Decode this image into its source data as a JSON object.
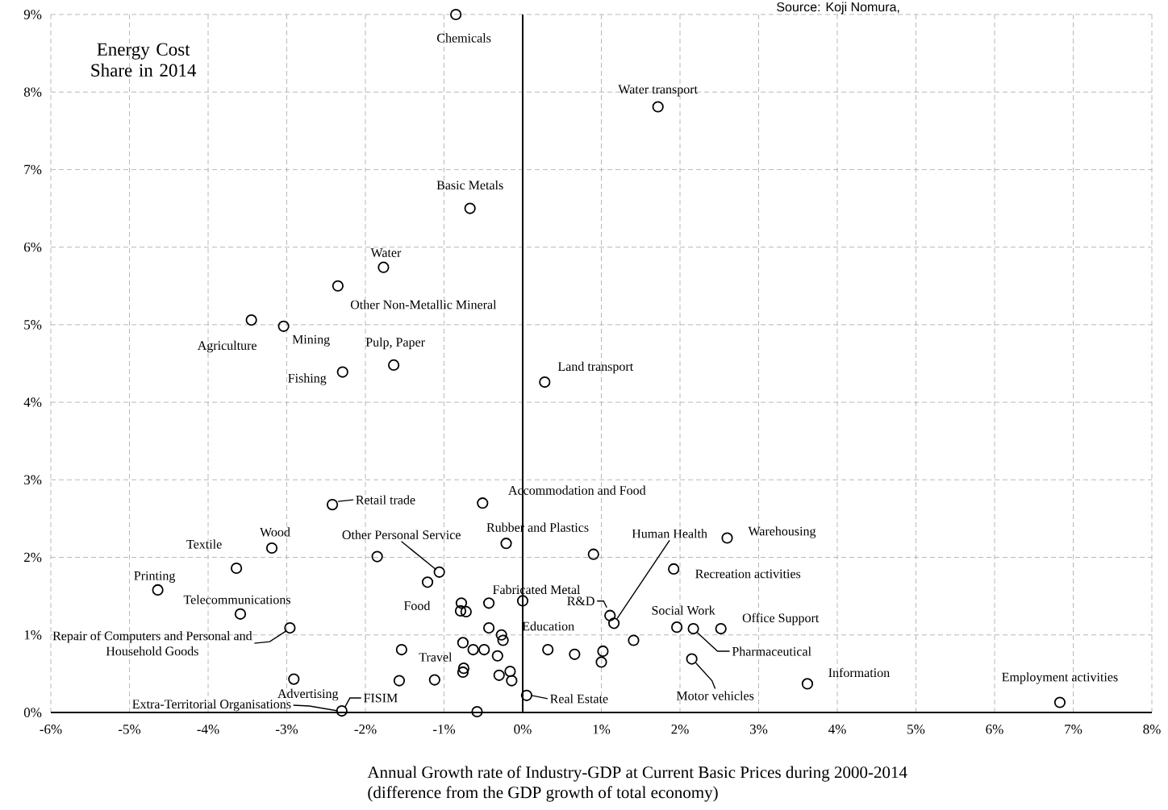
{
  "chart_data": {
    "type": "scatter",
    "ylabel": "Energy Cost Share in 2014",
    "xlabel": "Annual Growth rate of Industry-GDP at Current Basic Prices during 2000-2014",
    "x": [
      -0.85,
      1.72,
      -0.67,
      -1.77,
      -2.35,
      -3.45,
      -3.04,
      -1.64,
      -2.29,
      0.28,
      -2.42,
      -0.51,
      -0.21,
      2.6,
      0.9,
      -3.19,
      -3.64,
      -4.64,
      -1.85,
      -1.06,
      -1.21,
      -3.59,
      -2.96,
      -0.78,
      -0.79,
      -0.72,
      -0.43,
      0.0,
      -0.43,
      -0.27,
      -0.25,
      -0.76,
      -0.63,
      -0.49,
      -0.32,
      -0.75,
      -0.76,
      -0.3,
      -0.16,
      -0.14,
      -1.54,
      -1.57,
      -1.12,
      -2.91,
      -2.3,
      -0.58,
      0.05,
      0.32,
      0.66,
      1.02,
      1.0,
      1.11,
      1.16,
      1.41,
      1.92,
      1.96,
      2.17,
      2.52,
      2.15,
      3.62,
      6.83
    ],
    "values": [
      9.0,
      7.81,
      6.5,
      5.74,
      5.5,
      5.06,
      4.98,
      4.48,
      4.39,
      4.26,
      2.68,
      2.7,
      2.18,
      2.25,
      2.04,
      2.12,
      1.86,
      1.58,
      2.01,
      1.81,
      1.68,
      1.27,
      1.09,
      1.41,
      1.31,
      1.3,
      1.41,
      1.44,
      1.09,
      1.0,
      0.93,
      0.9,
      0.81,
      0.81,
      0.73,
      0.57,
      0.52,
      0.48,
      0.53,
      0.41,
      0.81,
      0.41,
      0.42,
      0.43,
      0.02,
      0.01,
      0.22,
      0.81,
      0.75,
      0.79,
      0.65,
      1.25,
      1.15,
      0.93,
      1.85,
      1.1,
      1.08,
      1.08,
      0.69,
      0.37,
      0.13
    ],
    "color": "#000000",
    "marker": "circle",
    "grid": true,
    "xlim": [
      -6,
      8
    ],
    "ylim": [
      0,
      9
    ],
    "xticks": [
      {
        "value": -6,
        "label": "-6%"
      },
      {
        "value": -5,
        "label": "-5%"
      },
      {
        "value": -4,
        "label": "-4%"
      },
      {
        "value": -3,
        "label": "-3%"
      },
      {
        "value": -2,
        "label": "-2%"
      },
      {
        "value": -1,
        "label": "-1%"
      },
      {
        "value": 0,
        "label": "0%"
      },
      {
        "value": 1,
        "label": "1%"
      },
      {
        "value": 2,
        "label": "2%"
      },
      {
        "value": 3,
        "label": "3%"
      },
      {
        "value": 4,
        "label": "4%"
      },
      {
        "value": 5,
        "label": "5%"
      },
      {
        "value": 6,
        "label": "6%"
      },
      {
        "value": 7,
        "label": "7%"
      },
      {
        "value": 8,
        "label": "8%"
      }
    ],
    "yticks": [
      {
        "value": 0,
        "label": "0%"
      },
      {
        "value": 1,
        "label": "1%"
      },
      {
        "value": 2,
        "label": "2%"
      },
      {
        "value": 3,
        "label": "3%"
      },
      {
        "value": 4,
        "label": "4%"
      },
      {
        "value": 5,
        "label": "5%"
      },
      {
        "value": 6,
        "label": "6%"
      },
      {
        "value": 7,
        "label": "7%"
      },
      {
        "value": 8,
        "label": "8%"
      },
      {
        "value": 9,
        "label": "9%"
      }
    ],
    "ref_lines": [
      {
        "axis": "x",
        "value": 0
      }
    ],
    "annotations": [
      {
        "text": "Chemicals",
        "x": -0.85,
        "y": 9.0
      },
      {
        "text": "Water transport",
        "x": 1.72,
        "y": 7.81
      },
      {
        "text": "Basic Metals",
        "x": -0.67,
        "y": 6.5
      },
      {
        "text": "Water",
        "x": -1.77,
        "y": 5.74
      },
      {
        "text": "Other Non-Metallic Mineral",
        "x": -2.35,
        "y": 5.5
      },
      {
        "text": "Agriculture",
        "x": -3.45,
        "y": 5.06
      },
      {
        "text": "Mining",
        "x": -3.04,
        "y": 4.98
      },
      {
        "text": "Pulp, Paper",
        "x": -1.64,
        "y": 4.48
      },
      {
        "text": "Fishing",
        "x": -2.29,
        "y": 4.39
      },
      {
        "text": "Land transport",
        "x": 0.28,
        "y": 4.26
      },
      {
        "text": "Retail trade",
        "x": -2.42,
        "y": 2.68
      },
      {
        "text": "Accommodation and Food",
        "x": -0.51,
        "y": 2.7
      },
      {
        "text": "Rubber and Plastics",
        "x": -0.21,
        "y": 2.18
      },
      {
        "text": "Warehousing",
        "x": 2.6,
        "y": 2.25
      },
      {
        "text": "Human Health",
        "x": 1.16,
        "y": 1.15
      },
      {
        "text": "Recreation activities",
        "x": 1.92,
        "y": 1.85
      },
      {
        "text": "Wood",
        "x": -3.19,
        "y": 2.12
      },
      {
        "text": "Textile",
        "x": -3.64,
        "y": 1.86
      },
      {
        "text": "Printing",
        "x": -4.64,
        "y": 1.58
      },
      {
        "text": "Other Personal Service",
        "x": -1.06,
        "y": 1.81
      },
      {
        "text": "Telecommunications",
        "x": -3.59,
        "y": 1.27
      },
      {
        "text": "Repair of Computers and Personal and Household Goods",
        "x": -2.96,
        "y": 1.09
      },
      {
        "text": "Food",
        "x": -0.78,
        "y": 1.41
      },
      {
        "text": "Fabricated Metal",
        "x": 0.0,
        "y": 1.44
      },
      {
        "text": "Education",
        "x": -0.27,
        "y": 1.0
      },
      {
        "text": "Travel",
        "x": -0.75,
        "y": 0.57
      },
      {
        "text": "R&D",
        "x": 1.11,
        "y": 1.25
      },
      {
        "text": "Social Work",
        "x": 1.96,
        "y": 1.1
      },
      {
        "text": "Office Support",
        "x": 2.52,
        "y": 1.08
      },
      {
        "text": "Pharmaceutical",
        "x": 2.17,
        "y": 1.08
      },
      {
        "text": "Motor vehicles",
        "x": 2.15,
        "y": 0.69
      },
      {
        "text": "Information",
        "x": 3.62,
        "y": 0.37
      },
      {
        "text": "Employment activities",
        "x": 6.83,
        "y": 0.13
      },
      {
        "text": "Real Estate",
        "x": 0.05,
        "y": 0.22
      },
      {
        "text": "Advertising",
        "x": -2.3,
        "y": 0.02
      },
      {
        "text": "FISIM",
        "x": -2.3,
        "y": 0.02
      },
      {
        "text": "Extra-Territorial Organisations",
        "x": -2.3,
        "y": 0.02
      },
      "Source: Koji Nomura,",
      "(difference from the GDP growth of total economy)"
    ]
  }
}
